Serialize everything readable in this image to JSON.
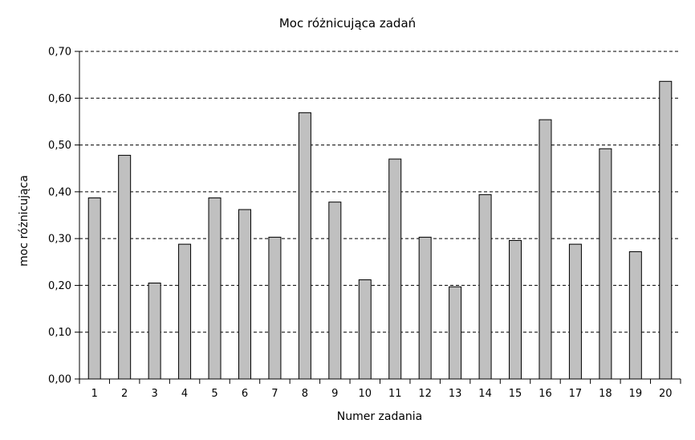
{
  "chart_data": {
    "type": "bar",
    "title": "Moc różnicująca zadań",
    "xlabel": "Numer zadania",
    "ylabel": "moc różnicująca",
    "categories": [
      "1",
      "2",
      "3",
      "4",
      "5",
      "6",
      "7",
      "8",
      "9",
      "10",
      "11",
      "12",
      "13",
      "14",
      "15",
      "16",
      "17",
      "18",
      "19",
      "20"
    ],
    "values": [
      0.387,
      0.478,
      0.205,
      0.288,
      0.387,
      0.362,
      0.303,
      0.569,
      0.378,
      0.212,
      0.47,
      0.303,
      0.197,
      0.394,
      0.296,
      0.554,
      0.288,
      0.492,
      0.272,
      0.636
    ],
    "ylim": [
      0,
      0.7
    ],
    "yticks": [
      0,
      0.1,
      0.2,
      0.3,
      0.4,
      0.5,
      0.6,
      0.7
    ],
    "ytick_labels": [
      "0,00",
      "0,10",
      "0,20",
      "0,30",
      "0,40",
      "0,50",
      "0,60",
      "0,70"
    ],
    "grid": "horizontal dashed",
    "bar_color": "#c0c0c0"
  }
}
